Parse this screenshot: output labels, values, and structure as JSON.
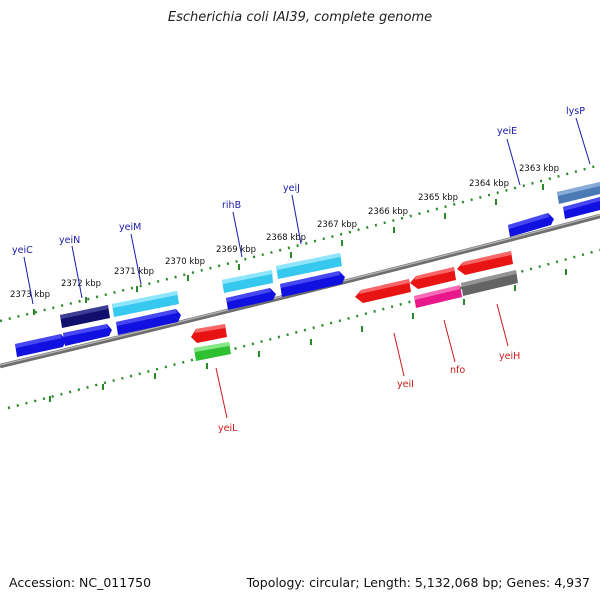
{
  "title": "Escherichia coli IAI39, complete genome",
  "accession": "Accession: NC_011750",
  "topology": "Topology: circular;",
  "length": "Length: 5,132,068 bp;",
  "genes": "Genes: 4,937",
  "colors": {
    "backbone": "#8a8a8a",
    "tick": "#2a8a2a",
    "label_forward": "#1a1aa8",
    "label_reverse": "#cc1a1a"
  },
  "ticks": [
    "2373 kbp",
    "2372 kbp",
    "2371 kbp",
    "2370 kbp",
    "2369 kbp",
    "2368 kbp",
    "2367 kbp",
    "2366 kbp",
    "2365 kbp",
    "2364 kbp",
    "2363 kbp"
  ],
  "genes_forward": [
    {
      "name": "yeiC",
      "color": "#1414e0"
    },
    {
      "name": "yeiN",
      "color": "#0f0f6e"
    },
    {
      "name": "yeiM",
      "color": "#33ccf0"
    },
    {
      "name": "rihB",
      "color": "#33ccf0"
    },
    {
      "name": "yeiJ",
      "color": "#33ccf0"
    },
    {
      "name": "yeiE",
      "color": "#1414e0"
    },
    {
      "name": "lysP",
      "color": "#4682b4"
    }
  ],
  "genes_reverse": [
    {
      "name": "yeiL",
      "color": "#33cc33"
    },
    {
      "name": "yeiI",
      "color": "#ee1111"
    },
    {
      "name": "nfo",
      "color": "#ee1188"
    },
    {
      "name": "yeiH",
      "color": "#666666"
    }
  ]
}
